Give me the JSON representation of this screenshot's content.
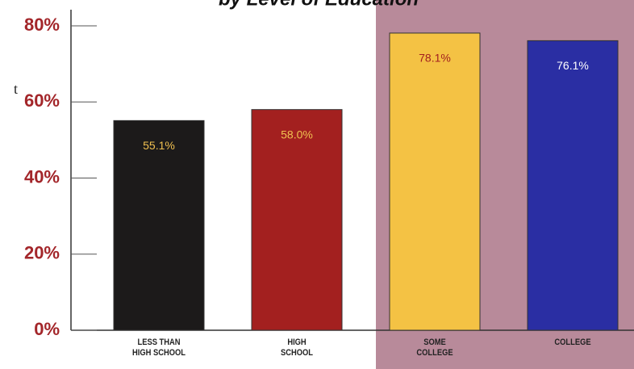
{
  "chart_data": {
    "type": "bar",
    "title": "by Level of Education",
    "annotation": "t",
    "categories": [
      "LESS THAN\nHIGH SCHOOL",
      "HIGH\nSCHOOL",
      "SOME\nCOLLEGE",
      "COLLEGE"
    ],
    "values": [
      55.1,
      58.0,
      78.1,
      76.1
    ],
    "value_labels": [
      "55.1%",
      "58.0%",
      "78.1%",
      "76.1%"
    ],
    "colors": [
      "#1c1a1a",
      "#a3201f",
      "#f4c244",
      "#2a2ea3"
    ],
    "label_colors": [
      "#f0c050",
      "#f0c050",
      "#a3201f",
      "#ffffff"
    ],
    "ylim": [
      0,
      80
    ],
    "yticks": [
      {
        "value": 0,
        "label": "0%"
      },
      {
        "value": 20,
        "label": "20%"
      },
      {
        "value": 40,
        "label": "40%"
      },
      {
        "value": 60,
        "label": "60%"
      },
      {
        "value": 80,
        "label": "80%"
      }
    ]
  }
}
